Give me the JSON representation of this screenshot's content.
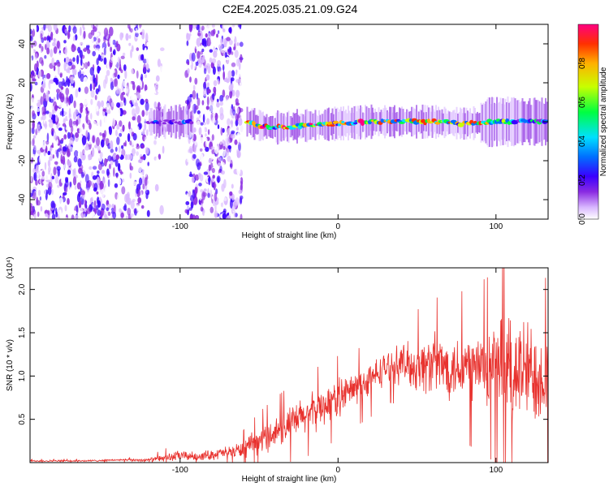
{
  "title": "C2E4.2025.035.21.09.G24",
  "colors": {
    "snr_line": "#e8322e",
    "axis": "#000000",
    "background": "#ffffff"
  },
  "chart_data": [
    {
      "type": "heatmap",
      "name": "spectrogram",
      "xlabel": "Height of straight line (km)",
      "ylabel": "Frequency (Hz)",
      "xlim": [
        -195,
        133
      ],
      "ylim": [
        -50,
        50
      ],
      "x_ticks": [
        -100,
        0,
        100
      ],
      "x_tick_labels": [
        "-100",
        "0",
        "100"
      ],
      "y_ticks": [
        -40,
        -20,
        0,
        20,
        40
      ],
      "y_tick_labels": [
        "-40",
        "-20",
        "0",
        "20",
        "40"
      ],
      "colorbar": {
        "label": "Normalized spectral amplitude",
        "range": [
          0,
          1
        ],
        "ticks": [
          0.0,
          0.2,
          0.4,
          0.6,
          0.8
        ],
        "tick_labels": [
          "0.0",
          "0.2",
          "0.4",
          "0.6",
          "0.8"
        ],
        "colormap": [
          "#ffffff",
          "#d9b8ff",
          "#8a2be2",
          "#3a00ff",
          "#0070ff",
          "#00e0ff",
          "#00ff40",
          "#c8ff00",
          "#ffb000",
          "#ff3000",
          "#ff0080"
        ]
      },
      "regions": [
        {
          "desc": "scattered noise",
          "x_range": [
            -195,
            -120
          ],
          "freq_range": [
            -50,
            50
          ],
          "amplitude": 0.15
        },
        {
          "desc": "scattered noise",
          "x_range": [
            -116,
            -110
          ],
          "freq_range": [
            -50,
            50
          ],
          "amplitude": 0.08
        },
        {
          "desc": "scattered noise",
          "x_range": [
            -96,
            -61
          ],
          "freq_range": [
            -50,
            50
          ],
          "amplitude": 0.15
        },
        {
          "desc": "signal band",
          "x_range": [
            -120,
            -92
          ],
          "freq_range": [
            -5,
            5
          ],
          "amplitude": 0.35
        },
        {
          "desc": "signal band",
          "x_range": [
            -58,
            133
          ],
          "freq_range": [
            -5,
            5
          ],
          "amplitude": 0.9
        }
      ],
      "signal_center_freq": [
        [
          -58,
          0
        ],
        [
          -50,
          -2
        ],
        [
          -40,
          -3
        ],
        [
          -20,
          -2
        ],
        [
          0,
          -1
        ],
        [
          20,
          0
        ],
        [
          60,
          0
        ],
        [
          80,
          -1
        ],
        [
          100,
          0
        ],
        [
          133,
          0
        ]
      ]
    },
    {
      "type": "line",
      "name": "snr",
      "xlabel": "Height of straight line (km)",
      "ylabel": "SNR (10 * v/v)",
      "y_multiplier_label": "(x10⁴)",
      "xlim": [
        -195,
        133
      ],
      "ylim": [
        0,
        2.25
      ],
      "x_ticks": [
        -100,
        0,
        100
      ],
      "x_tick_labels": [
        "-100",
        "0",
        "100"
      ],
      "y_ticks": [
        0.5,
        1.0,
        1.5,
        2.0
      ],
      "y_tick_labels": [
        "0.5",
        "1.0",
        "1.5",
        "2.0"
      ],
      "series": [
        {
          "x": [
            -195,
            -180,
            -160,
            -140,
            -120,
            -110,
            -100,
            -90,
            -80,
            -70,
            -60,
            -50,
            -40,
            -30,
            -20,
            -10,
            0,
            10,
            20,
            30,
            40,
            50,
            60,
            70,
            80,
            90,
            100,
            110,
            120,
            133
          ],
          "y": [
            0.02,
            0.02,
            0.02,
            0.03,
            0.03,
            0.05,
            0.08,
            0.07,
            0.09,
            0.12,
            0.15,
            0.25,
            0.35,
            0.45,
            0.55,
            0.65,
            0.75,
            0.85,
            0.95,
            1.1,
            1.15,
            1.1,
            1.15,
            1.1,
            1.12,
            1.1,
            1.1,
            1.08,
            1.05,
            1.0
          ],
          "spread": [
            0.01,
            0.01,
            0.01,
            0.01,
            0.02,
            0.05,
            0.06,
            0.05,
            0.06,
            0.07,
            0.1,
            0.15,
            0.18,
            0.2,
            0.22,
            0.22,
            0.22,
            0.2,
            0.2,
            0.18,
            0.22,
            0.3,
            0.35,
            0.35,
            0.4,
            0.45,
            0.5,
            0.7,
            0.6,
            0.5
          ]
        }
      ]
    }
  ]
}
